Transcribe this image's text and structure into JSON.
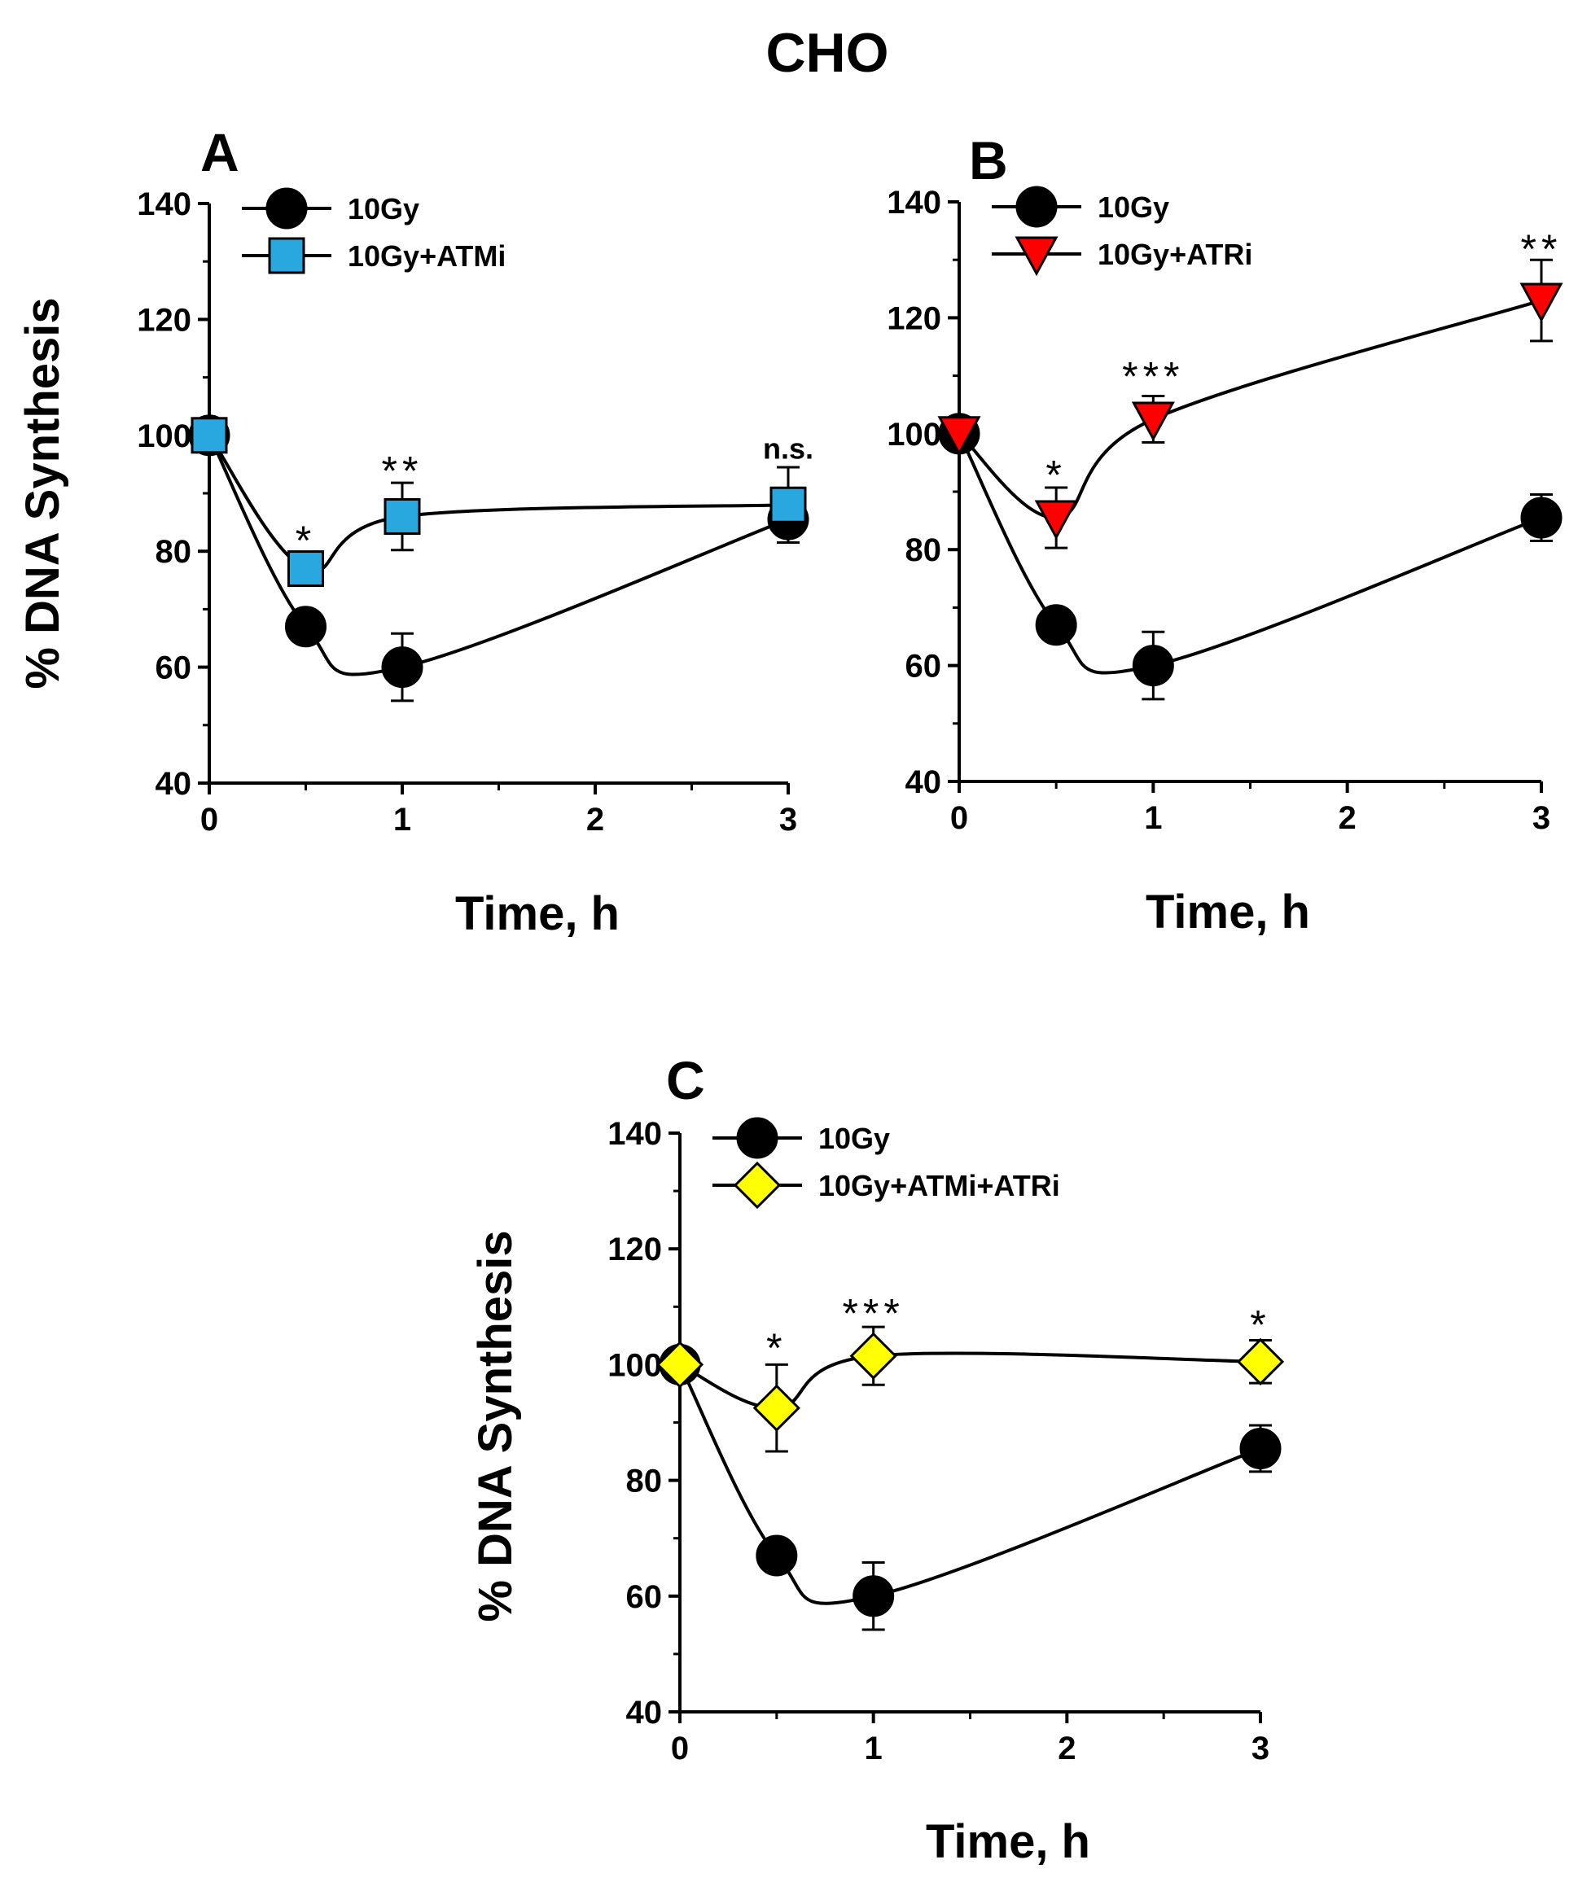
{
  "figure_title": "CHO",
  "chart_data": [
    {
      "panel": "A",
      "type": "line",
      "xlabel": "Time, h",
      "ylabel": "% DNA Synthesis",
      "xlim": [
        0,
        3
      ],
      "ylim": [
        40,
        140
      ],
      "x_ticks": [
        0,
        1,
        2,
        3
      ],
      "y_ticks": [
        40,
        60,
        80,
        100,
        120,
        140
      ],
      "legend_position": "top-left",
      "series": [
        {
          "name": "10Gy",
          "marker": "circle",
          "color": "#000000",
          "x": [
            0,
            0.5,
            1,
            3
          ],
          "values": [
            100,
            67,
            60,
            85.5
          ],
          "err": [
            0,
            0,
            5.8,
            4
          ]
        },
        {
          "name": "10Gy+ATMi",
          "marker": "square",
          "color": "#29a8e0",
          "x": [
            0,
            0.5,
            1,
            3
          ],
          "values": [
            100,
            77,
            86,
            88
          ],
          "err": [
            0,
            2.5,
            5.8,
            6.5
          ]
        }
      ],
      "annotations": [
        {
          "x": 0.5,
          "y": 82,
          "text": "*"
        },
        {
          "x": 1,
          "y": 94,
          "text": "**"
        },
        {
          "x": 3,
          "y": 96,
          "text": "n.s."
        }
      ]
    },
    {
      "panel": "B",
      "type": "line",
      "xlabel": "Time, h",
      "ylabel": "",
      "xlim": [
        0,
        3
      ],
      "ylim": [
        40,
        140
      ],
      "x_ticks": [
        0,
        1,
        2,
        3
      ],
      "y_ticks": [
        40,
        60,
        80,
        100,
        120,
        140
      ],
      "legend_position": "top-left",
      "series": [
        {
          "name": "10Gy",
          "marker": "circle",
          "color": "#000000",
          "x": [
            0,
            0.5,
            1,
            3
          ],
          "values": [
            100,
            67,
            60,
            85.5
          ],
          "err": [
            0,
            0,
            5.8,
            4
          ]
        },
        {
          "name": "10Gy+ATRi",
          "marker": "triangle-down",
          "color": "#ff0000",
          "x": [
            0,
            0.5,
            1,
            3
          ],
          "values": [
            100,
            85.5,
            102.5,
            123
          ],
          "err": [
            0,
            5.2,
            4,
            7
          ]
        }
      ],
      "annotations": [
        {
          "x": 0.5,
          "y": 93,
          "text": "*"
        },
        {
          "x": 1,
          "y": 110,
          "text": "***"
        },
        {
          "x": 3,
          "y": 132,
          "text": "**"
        }
      ]
    },
    {
      "panel": "C",
      "type": "line",
      "xlabel": "Time, h",
      "ylabel": "% DNA Synthesis",
      "xlim": [
        0,
        3
      ],
      "ylim": [
        40,
        140
      ],
      "x_ticks": [
        0,
        1,
        2,
        3
      ],
      "y_ticks": [
        40,
        60,
        80,
        100,
        120,
        140
      ],
      "legend_position": "top-left",
      "series": [
        {
          "name": "10Gy",
          "marker": "circle",
          "color": "#000000",
          "x": [
            0,
            0.5,
            1,
            3
          ],
          "values": [
            100,
            67,
            60,
            85.5
          ],
          "err": [
            0,
            0,
            5.8,
            4
          ]
        },
        {
          "name": "10Gy+ATMi+ATRi",
          "marker": "diamond",
          "color": "#ffff00",
          "x": [
            0,
            0.5,
            1,
            3
          ],
          "values": [
            100,
            92.5,
            101.5,
            100.5
          ],
          "err": [
            0,
            7.5,
            5,
            3.7
          ]
        }
      ],
      "annotations": [
        {
          "x": 0.5,
          "y": 103,
          "text": "*"
        },
        {
          "x": 1,
          "y": 109,
          "text": "***"
        },
        {
          "x": 3,
          "y": 107,
          "text": "*"
        }
      ]
    }
  ]
}
